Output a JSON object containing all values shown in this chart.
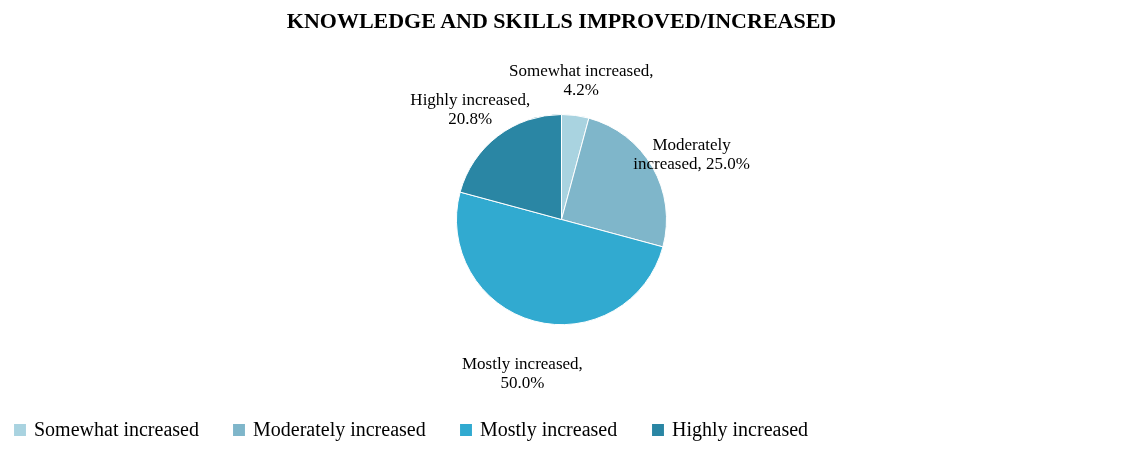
{
  "chart_data": {
    "type": "pie",
    "title": "KNOWLEDGE AND SKILLS IMPROVED/INCREASED",
    "categories": [
      "Somewhat increased",
      "Moderately increased",
      "Mostly increased",
      "Highly increased"
    ],
    "values": [
      4.2,
      25.0,
      50.0,
      20.8
    ],
    "value_labels": [
      "Somewhat increased,\n4.2%",
      "Moderately\nincreased, 25.0%",
      "Mostly increased,\n50.0%",
      "Highly increased,\n20.8%"
    ],
    "colors": [
      "#a9d3e0",
      "#7fb6ca",
      "#31aad0",
      "#2a86a4"
    ],
    "legend": "bottom"
  }
}
